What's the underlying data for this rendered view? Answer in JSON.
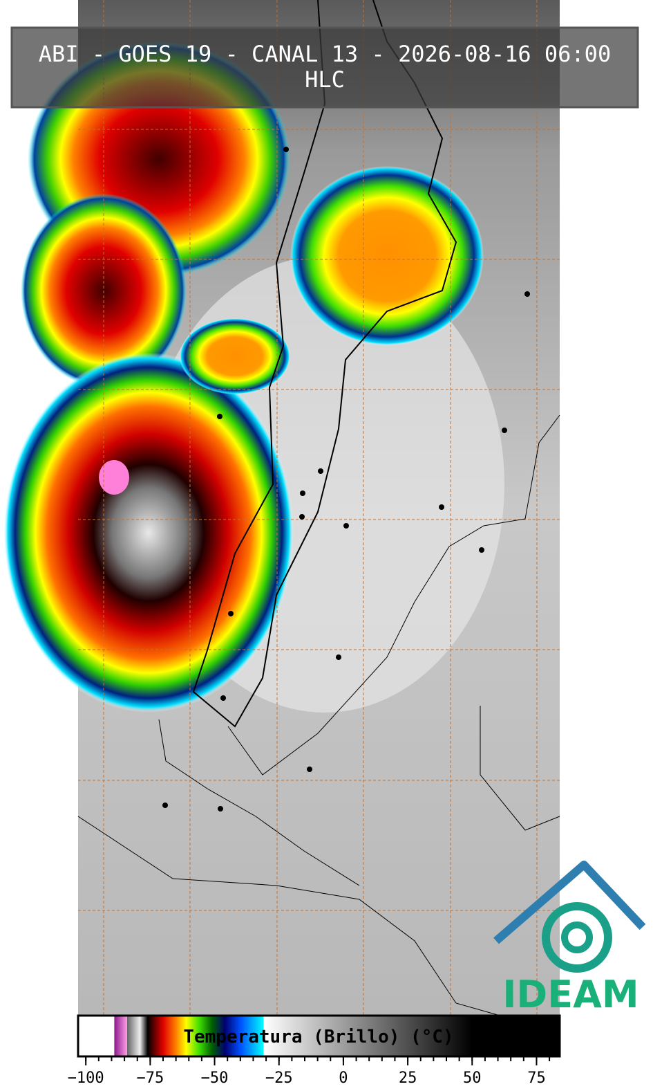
{
  "header": {
    "title_lines": [
      "ABI - GOES 19 - CANAL 13 - 2026-08-16 06:00",
      "HLC"
    ]
  },
  "logo": {
    "text": "IDEAM"
  },
  "colorbar": {
    "label": "Temperatura (Brillo) (°C)",
    "clim": [
      -103,
      84
    ],
    "ticks": [
      {
        "value": -100,
        "label": "−100"
      },
      {
        "value": -75,
        "label": "−75"
      },
      {
        "value": -50,
        "label": "−50"
      },
      {
        "value": -25,
        "label": "−25"
      },
      0,
      25,
      50,
      75
    ],
    "minor_ticks": [
      -100,
      -95,
      -90,
      -85,
      -80,
      -75,
      -70,
      -65,
      -60,
      -55,
      -50,
      -45,
      -40,
      -35,
      -30,
      -25,
      -20,
      -15,
      -10,
      -5,
      0,
      5,
      10,
      15,
      20,
      25,
      30,
      35,
      40,
      45,
      50,
      55,
      60,
      65,
      70,
      75,
      80
    ],
    "colormap": [
      {
        "value": -103,
        "color": "#ffffff"
      },
      {
        "value": -89,
        "color": "#ffffff"
      },
      {
        "value": -88.9,
        "color": "#8a1a8a"
      },
      {
        "value": -84,
        "color": "#ff9ee6"
      },
      {
        "value": -83.9,
        "color": "#666666"
      },
      {
        "value": -79,
        "color": "#eeeeee"
      },
      {
        "value": -76,
        "color": "#000000"
      },
      {
        "value": -70,
        "color": "#e00000"
      },
      {
        "value": -65,
        "color": "#ff8000"
      },
      {
        "value": -61,
        "color": "#ffff00"
      },
      {
        "value": -56,
        "color": "#40e000"
      },
      {
        "value": -51,
        "color": "#006000"
      },
      {
        "value": -46,
        "color": "#000070"
      },
      {
        "value": -40,
        "color": "#0050ff"
      },
      {
        "value": -31,
        "color": "#00ffff"
      },
      {
        "value": -30.9,
        "color": "#ffffff"
      },
      {
        "value": 50,
        "color": "#000000"
      },
      {
        "value": 84,
        "color": "#000000"
      }
    ]
  }
}
